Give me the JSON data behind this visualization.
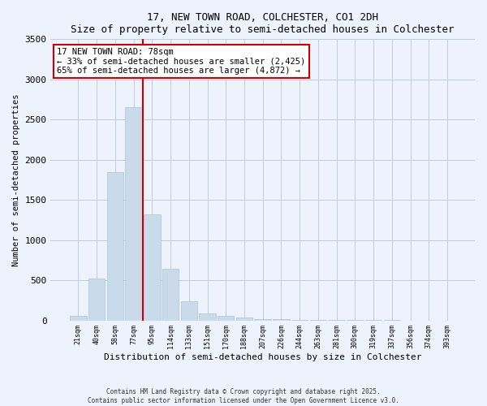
{
  "title1": "17, NEW TOWN ROAD, COLCHESTER, CO1 2DH",
  "title2": "Size of property relative to semi-detached houses in Colchester",
  "xlabel": "Distribution of semi-detached houses by size in Colchester",
  "ylabel": "Number of semi-detached properties",
  "bar_color": "#c9daea",
  "bar_edge_color": "#a8c4d8",
  "categories": [
    "21sqm",
    "40sqm",
    "58sqm",
    "77sqm",
    "95sqm",
    "114sqm",
    "133sqm",
    "151sqm",
    "170sqm",
    "188sqm",
    "207sqm",
    "226sqm",
    "244sqm",
    "263sqm",
    "281sqm",
    "300sqm",
    "319sqm",
    "337sqm",
    "356sqm",
    "374sqm",
    "393sqm"
  ],
  "values": [
    60,
    520,
    1850,
    2650,
    1320,
    640,
    240,
    90,
    55,
    35,
    20,
    12,
    8,
    5,
    3,
    2,
    1,
    1,
    0,
    0,
    0
  ],
  "ylim": [
    0,
    3500
  ],
  "yticks": [
    0,
    500,
    1000,
    1500,
    2000,
    2500,
    3000,
    3500
  ],
  "vline_color": "#cc0000",
  "vline_pos": 3.5,
  "annotation_text": "17 NEW TOWN ROAD: 78sqm\n← 33% of semi-detached houses are smaller (2,425)\n65% of semi-detached houses are larger (4,872) →",
  "annotation_box_color": "#ffffff",
  "annotation_box_edge": "#cc0000",
  "footer1": "Contains HM Land Registry data © Crown copyright and database right 2025.",
  "footer2": "Contains public sector information licensed under the Open Government Licence v3.0.",
  "bg_color": "#eef2fc",
  "plot_bg_color": "#eef2fc",
  "grid_color": "#c0ccdc"
}
